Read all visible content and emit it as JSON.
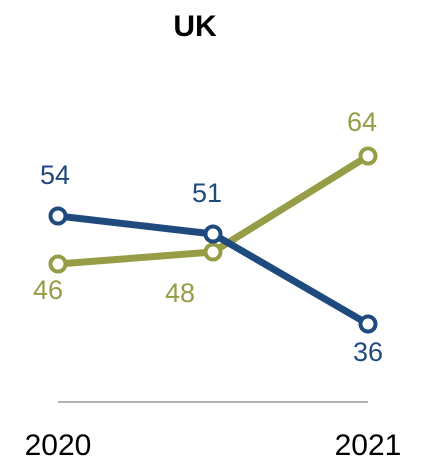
{
  "chart_data": {
    "type": "line",
    "title": "UK",
    "categories": [
      "2020",
      "",
      "2021"
    ],
    "series": [
      {
        "values": [
          54,
          51,
          36
        ],
        "color": "#1f4a7e",
        "marker": "open-circle"
      },
      {
        "values": [
          46,
          48,
          64
        ],
        "color": "#979d46",
        "marker": "open-circle"
      }
    ],
    "xlabel": "",
    "ylabel": "",
    "ylim": [
      0,
      80
    ],
    "grid": false,
    "legend": "none"
  }
}
